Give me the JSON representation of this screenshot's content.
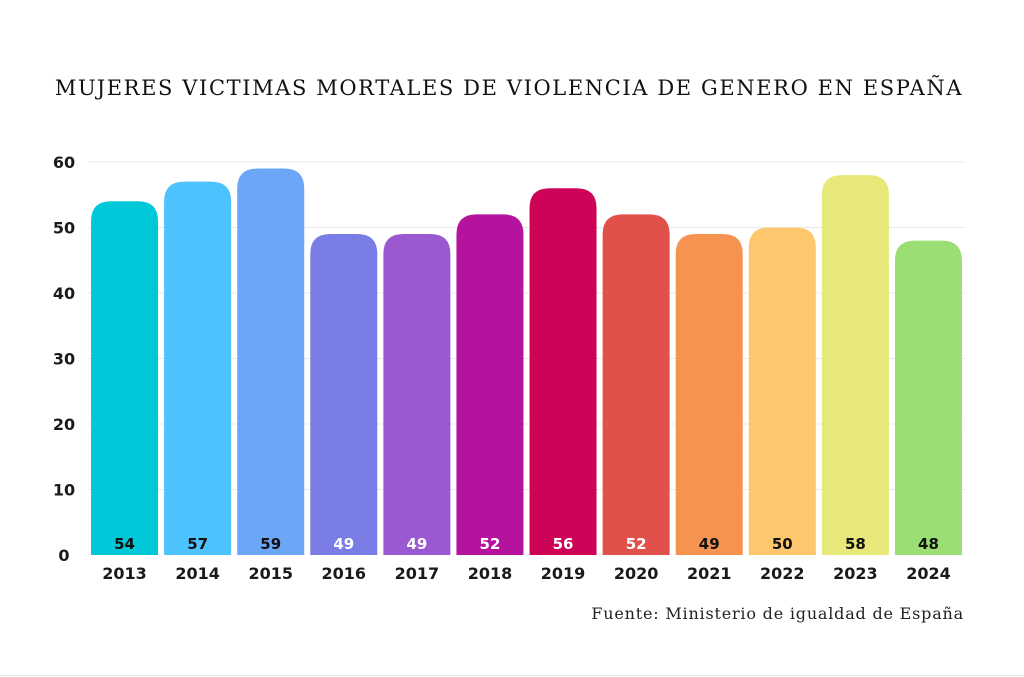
{
  "chart_data": {
    "type": "bar",
    "title": "MUJERES VICTIMAS MORTALES DE VIOLENCIA DE GENERO EN ESPAÑA",
    "categories": [
      "2013",
      "2014",
      "2015",
      "2016",
      "2017",
      "2018",
      "2019",
      "2020",
      "2021",
      "2022",
      "2023",
      "2024"
    ],
    "values": [
      54,
      57,
      59,
      49,
      49,
      52,
      56,
      52,
      49,
      50,
      58,
      48
    ],
    "value_labels": [
      "54",
      "57",
      "59",
      "49",
      "49",
      "52",
      "56",
      "52",
      "49",
      "50",
      "58",
      "48"
    ],
    "colors": [
      "#00c8d8",
      "#4cc3ff",
      "#6ba6f7",
      "#7a7de6",
      "#9a59d0",
      "#b5129e",
      "#cc0357",
      "#df514a",
      "#f69351",
      "#fec76e",
      "#e6e87a",
      "#9ade74"
    ],
    "label_colors": [
      "#111111",
      "#111111",
      "#111111",
      "#ffffff",
      "#ffffff",
      "#ffffff",
      "#ffffff",
      "#ffffff",
      "#111111",
      "#111111",
      "#111111",
      "#111111"
    ],
    "y_ticks": [
      "0",
      "10",
      "20",
      "30",
      "40",
      "50",
      "60"
    ],
    "ylim": [
      0,
      60
    ],
    "grid": true,
    "xlabel": "",
    "ylabel": "",
    "source": "Fuente: Ministerio de igualdad de España"
  }
}
